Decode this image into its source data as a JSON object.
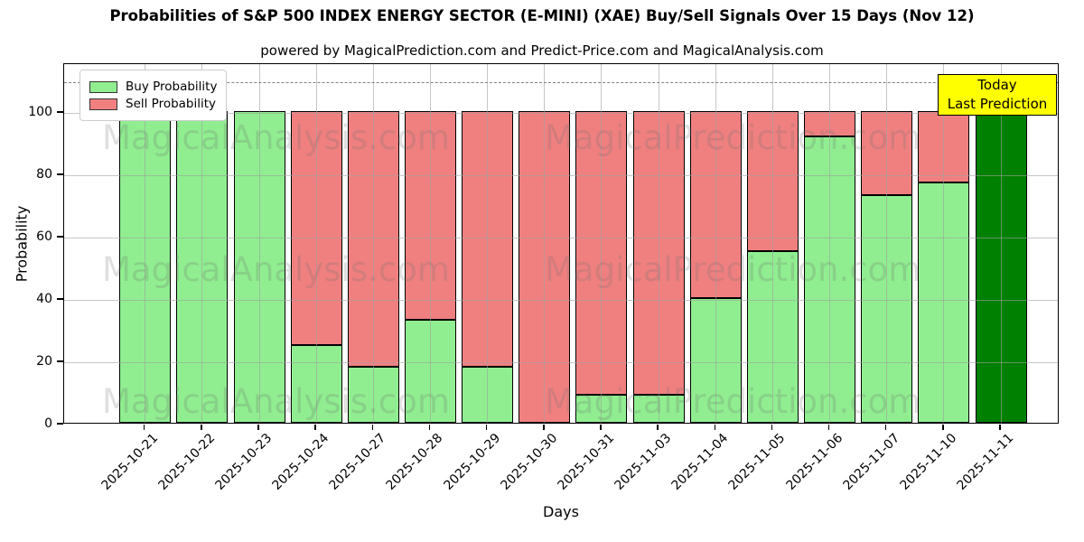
{
  "title": "Probabilities of S&P 500 INDEX ENERGY SECTOR (E-MINI) (XAE) Buy/Sell Signals Over 15 Days (Nov 12)",
  "subtitle": "powered by MagicalPrediction.com and Predict-Price.com and MagicalAnalysis.com",
  "watermarks": {
    "left_text": "MagicalAnalysis.com",
    "right_text": "MagicalPrediction.com"
  },
  "annotation": {
    "line1": "Today",
    "line2": "Last Prediction",
    "bg_color": "#FFFF00"
  },
  "legend": {
    "items": [
      {
        "label": "Buy Probability",
        "color": "#90EE90"
      },
      {
        "label": "Sell Probability",
        "color": "#F08080"
      }
    ]
  },
  "colors": {
    "buy": "#90EE90",
    "sell": "#F08080",
    "today_bar": "#008000",
    "grid": "#b0b0b0",
    "dashed_line": "#7f7f7f"
  },
  "chart_data": {
    "type": "bar",
    "stacked": true,
    "title": "Probabilities of S&P 500 INDEX ENERGY SECTOR (E-MINI) (XAE) Buy/Sell Signals Over 15 Days (Nov 12)",
    "xlabel": "Days",
    "ylabel": "Probability",
    "categories": [
      "2025-10-21",
      "2025-10-22",
      "2025-10-23",
      "2025-10-24",
      "2025-10-27",
      "2025-10-28",
      "2025-10-29",
      "2025-10-30",
      "2025-10-31",
      "2025-11-03",
      "2025-11-04",
      "2025-11-05",
      "2025-11-06",
      "2025-11-07",
      "2025-11-10",
      "2025-11-11"
    ],
    "series": [
      {
        "name": "Buy Probability",
        "color": "#90EE90",
        "values": [
          100,
          100,
          100,
          25,
          18,
          33,
          18,
          0,
          9,
          9,
          40,
          55,
          92,
          73,
          77,
          100
        ]
      },
      {
        "name": "Sell Probability",
        "color": "#F08080",
        "values": [
          0,
          0,
          0,
          75,
          82,
          67,
          82,
          100,
          91,
          91,
          60,
          45,
          8,
          27,
          23,
          0
        ]
      }
    ],
    "yticks": [
      0,
      20,
      40,
      60,
      80,
      100
    ],
    "ytick_labels": [
      "0",
      "20",
      "40",
      "60",
      "80",
      "100"
    ],
    "ylim": [
      0,
      115.7
    ],
    "dashed_line_y": 110,
    "grid": true,
    "legend_position": "upper left",
    "today_index": 15,
    "today_bar_color": "#008000"
  }
}
